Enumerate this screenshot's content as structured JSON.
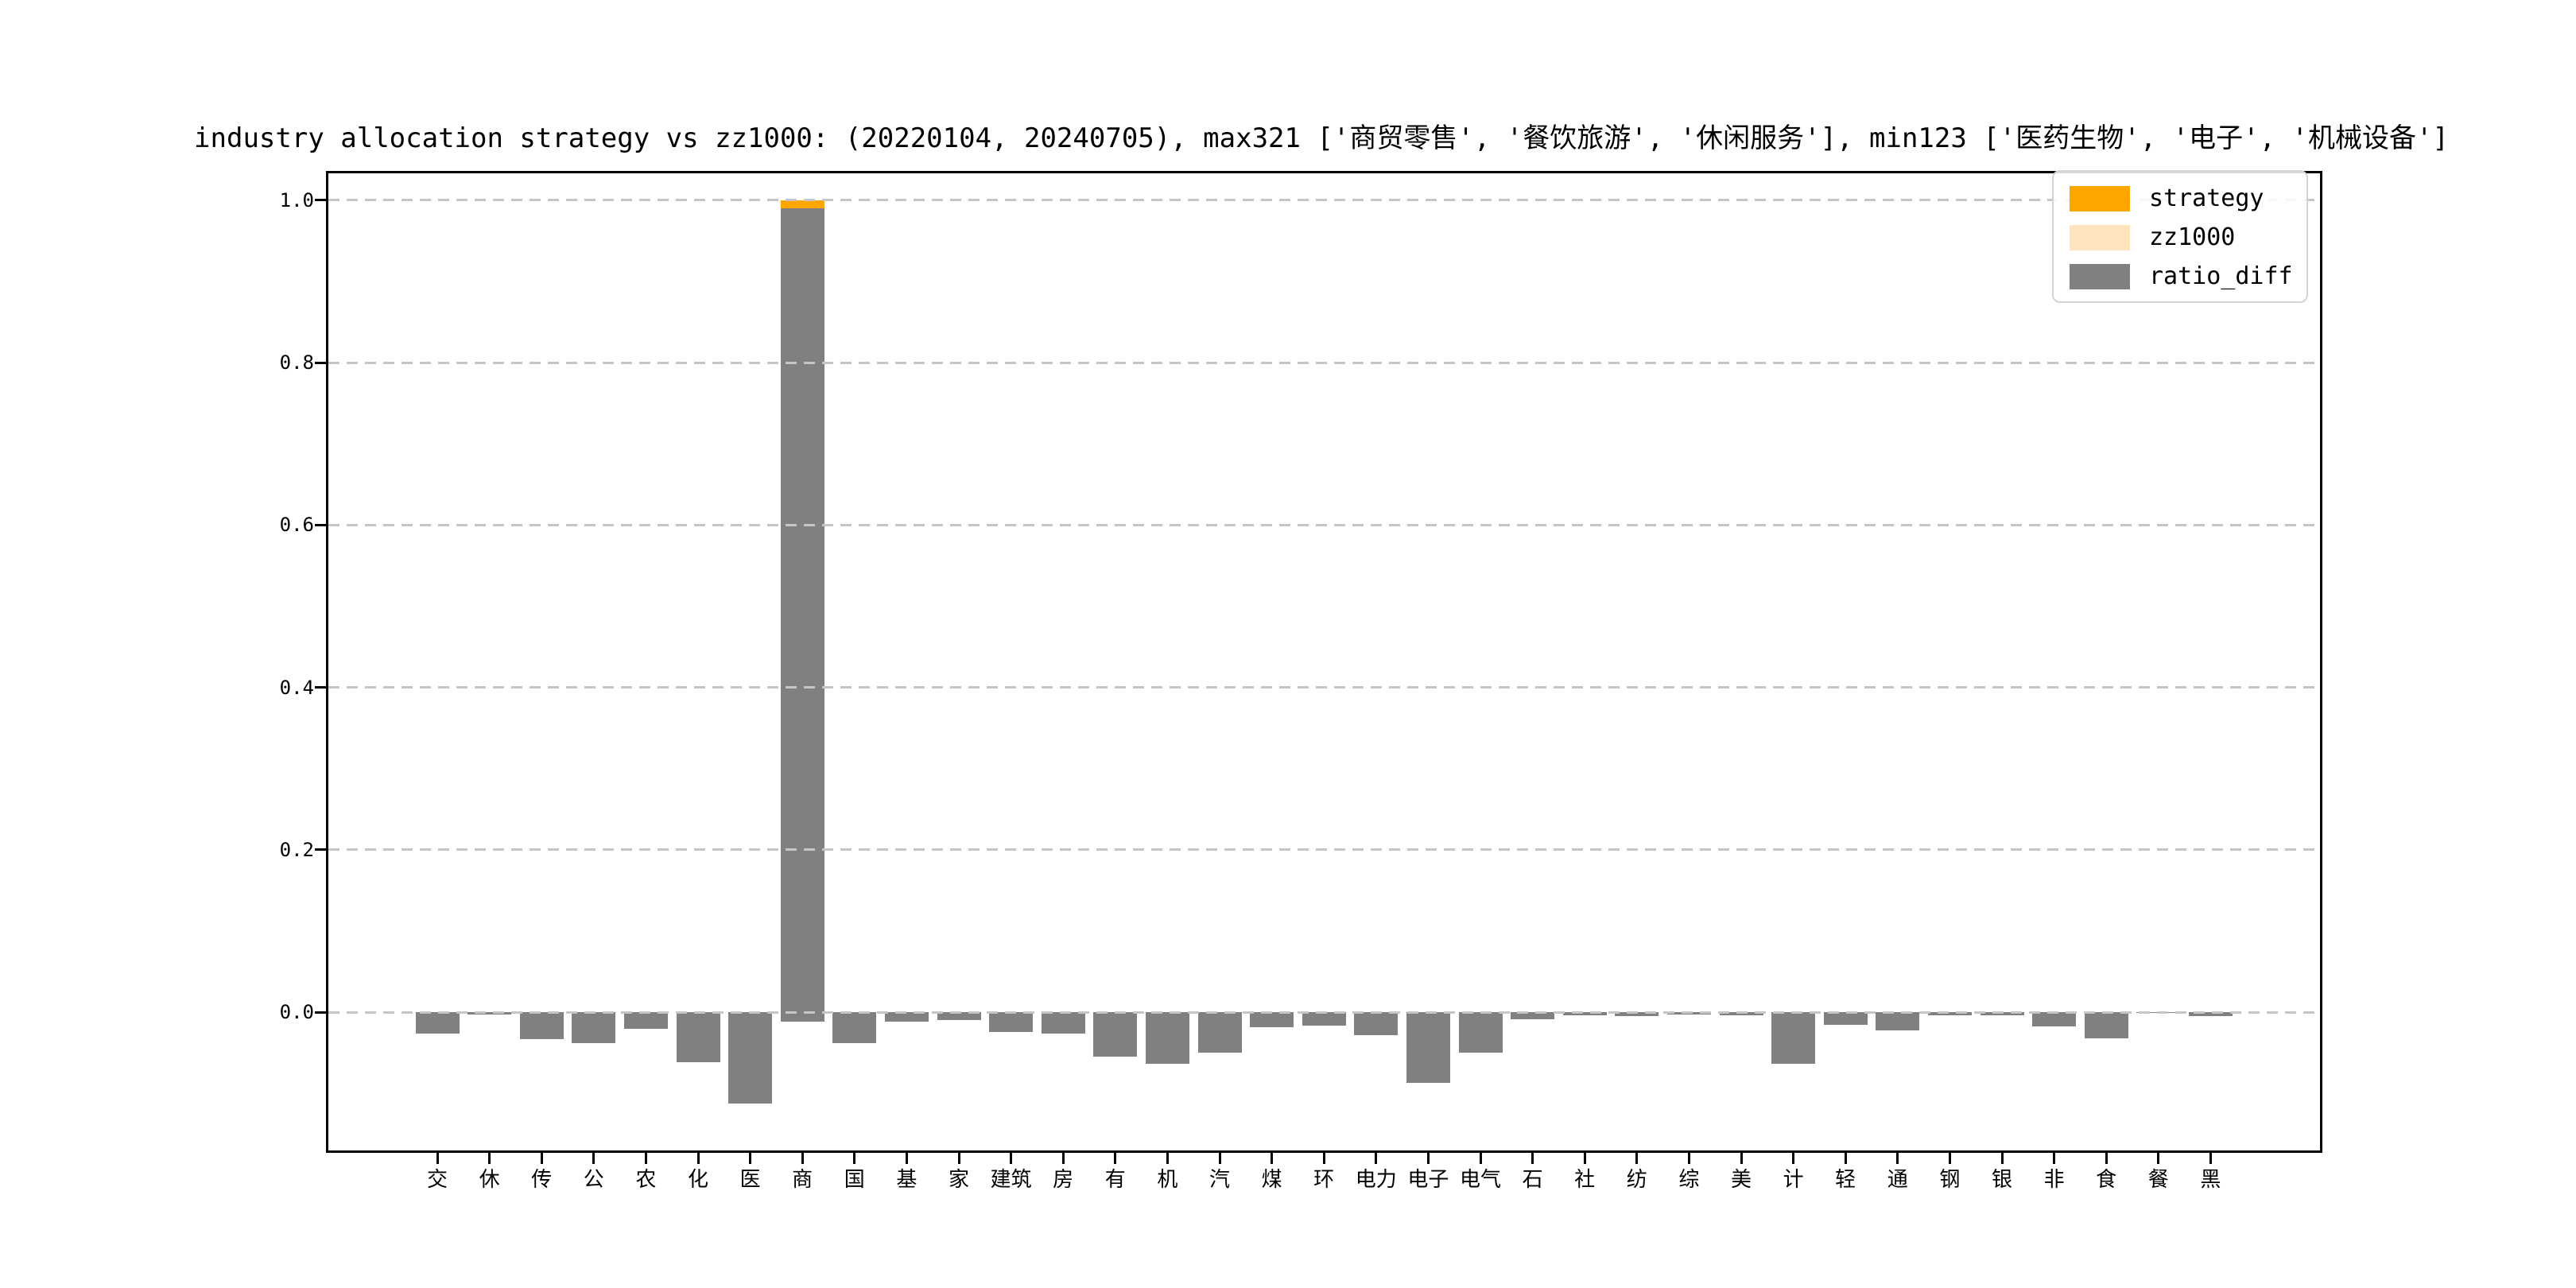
{
  "chart_data": {
    "type": "bar",
    "title": "industry allocation strategy vs zz1000: (20220104, 20240705), max321 ['商贸零售', '餐饮旅游', '休闲服务'], min123 ['医药生物', '电子', '机械设备']",
    "categories": [
      "交",
      "休",
      "传",
      "公",
      "农",
      "化",
      "医",
      "商",
      "国",
      "基",
      "家",
      "建筑",
      "房",
      "有",
      "机",
      "汽",
      "煤",
      "环",
      "电力",
      "电子",
      "电气",
      "石",
      "社",
      "纺",
      "综",
      "美",
      "计",
      "轻",
      "通",
      "钢",
      "银",
      "非",
      "食",
      "餐",
      "黑"
    ],
    "series": [
      {
        "name": "strategy",
        "color": "#FFA500",
        "values": [
          0,
          0,
          0,
          0,
          0,
          0,
          0,
          1.0,
          0,
          0,
          0,
          0,
          0,
          0,
          0,
          0,
          0,
          0,
          0,
          0,
          0,
          0,
          0,
          0,
          0,
          0,
          0,
          0,
          0,
          0,
          0,
          0,
          0,
          0,
          0
        ]
      },
      {
        "name": "zz1000",
        "color": "#FFE4BE",
        "values": [
          0,
          0,
          0,
          0,
          0,
          0,
          0,
          0.01,
          0,
          0,
          0,
          0,
          0,
          0,
          0,
          0,
          0,
          0,
          0,
          0,
          0,
          0,
          0,
          0,
          0,
          0,
          0,
          0,
          0,
          0,
          0,
          0,
          0,
          0,
          0
        ]
      },
      {
        "name": "ratio_diff",
        "color": "#808080",
        "values": [
          -0.026,
          -0.003,
          -0.033,
          -0.038,
          -0.021,
          -0.062,
          -0.113,
          0.99,
          -0.038,
          -0.012,
          -0.01,
          -0.024,
          -0.026,
          -0.055,
          -0.064,
          -0.05,
          -0.019,
          -0.017,
          -0.028,
          -0.087,
          -0.05,
          -0.009,
          -0.004,
          -0.005,
          -0.003,
          -0.004,
          -0.064,
          -0.016,
          -0.023,
          -0.004,
          -0.004,
          -0.018,
          -0.032,
          -0.001,
          -0.005
        ]
      }
    ],
    "tails": {
      "ratio_diff": {
        "7": -0.012
      }
    },
    "yticks": [
      0.0,
      0.2,
      0.4,
      0.6,
      0.8,
      1.0
    ],
    "ytick_labels": [
      "0.0",
      "0.2",
      "0.4",
      "0.6",
      "0.8",
      "1.0"
    ],
    "ylim": [
      -0.1704,
      1.0333
    ],
    "grid": "horizontal-dashed",
    "legend_position": "upper right",
    "legend_entries": [
      "strategy",
      "zz1000",
      "ratio_diff"
    ]
  }
}
